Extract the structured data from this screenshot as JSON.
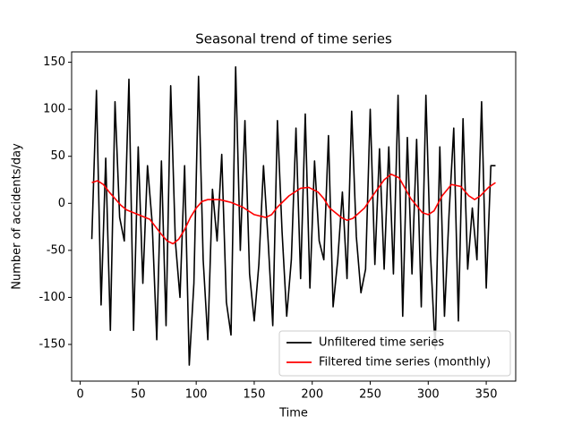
{
  "chart_data": {
    "type": "line",
    "title": "Seasonal trend of time series",
    "x_label": "Time",
    "y_label": "Number of accidents/day",
    "xlim": [
      -7.4,
      375.4
    ],
    "xticks": [
      0,
      50,
      100,
      150,
      200,
      250,
      300,
      350
    ],
    "ylim": [
      -189,
      161
    ],
    "yticks": [
      -150,
      -100,
      -50,
      0,
      50,
      100,
      150
    ],
    "legend": "lower right",
    "grid": false,
    "series": [
      {
        "name": "Unfiltered time series",
        "color": "#000000",
        "x": [
          10,
          14,
          18,
          22,
          26,
          30,
          34,
          38,
          42,
          46,
          50,
          54,
          58,
          62,
          66,
          70,
          74,
          78,
          82,
          86,
          90,
          94,
          98,
          102,
          106,
          110,
          114,
          118,
          122,
          126,
          130,
          134,
          138,
          142,
          146,
          150,
          154,
          158,
          162,
          166,
          170,
          174,
          178,
          182,
          186,
          190,
          194,
          198,
          202,
          206,
          210,
          214,
          218,
          222,
          226,
          230,
          234,
          238,
          242,
          246,
          250,
          254,
          258,
          262,
          266,
          270,
          274,
          278,
          282,
          286,
          290,
          294,
          298,
          302,
          306,
          310,
          314,
          318,
          322,
          326,
          330,
          334,
          338,
          342,
          346,
          350,
          354,
          358
        ],
        "values": [
          -38,
          120,
          -108,
          48,
          -135,
          108,
          -15,
          -40,
          132,
          -135,
          60,
          -85,
          40,
          -20,
          -145,
          45,
          -130,
          125,
          -40,
          -100,
          40,
          -172,
          -85,
          135,
          -60,
          -145,
          15,
          -40,
          52,
          -105,
          -140,
          145,
          -50,
          88,
          -75,
          -125,
          -65,
          40,
          -40,
          -130,
          88,
          -30,
          -120,
          -60,
          80,
          -80,
          95,
          -90,
          45,
          -40,
          -60,
          72,
          -110,
          -60,
          12,
          -80,
          98,
          -35,
          -95,
          -70,
          100,
          -65,
          58,
          -70,
          60,
          -75,
          115,
          -120,
          70,
          -75,
          68,
          -110,
          115,
          -55,
          -155,
          60,
          -120,
          -10,
          80,
          -125,
          90,
          -70,
          -5,
          -60,
          108,
          -90,
          40,
          40
        ]
      },
      {
        "name": "Filtered time series (monthly)",
        "color": "#ff0000",
        "x": [
          10,
          15,
          20,
          25,
          30,
          35,
          40,
          50,
          60,
          65,
          70,
          75,
          80,
          85,
          90,
          95,
          100,
          105,
          110,
          120,
          130,
          140,
          150,
          160,
          165,
          170,
          180,
          190,
          197,
          205,
          210,
          215,
          225,
          230,
          235,
          245,
          255,
          262,
          268,
          275,
          285,
          295,
          300,
          305,
          312,
          320,
          328,
          335,
          340,
          345,
          352,
          358
        ],
        "values": [
          22,
          24,
          20,
          12,
          5,
          -2,
          -7,
          -12,
          -17,
          -25,
          -33,
          -40,
          -43,
          -38,
          -28,
          -15,
          -5,
          2,
          4,
          4,
          1,
          -4,
          -12,
          -15,
          -12,
          -4,
          8,
          16,
          17,
          12,
          5,
          -5,
          -15,
          -18,
          -16,
          -5,
          13,
          25,
          31,
          27,
          5,
          -10,
          -12,
          -8,
          8,
          20,
          18,
          8,
          4,
          8,
          17,
          22
        ]
      }
    ]
  }
}
